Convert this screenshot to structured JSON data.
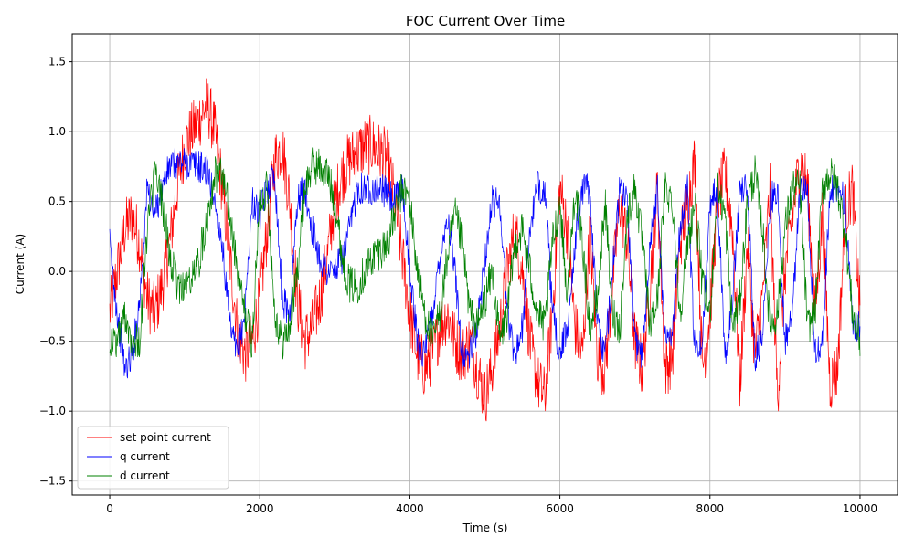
{
  "chart_data": {
    "type": "line",
    "title": "FOC Current Over Time",
    "xlabel": "Time (s)",
    "ylabel": "Current (A)",
    "xlim": [
      -500,
      10500
    ],
    "ylim": [
      -1.6,
      1.7
    ],
    "x_ticks": [
      0,
      2000,
      4000,
      6000,
      8000,
      10000
    ],
    "y_ticks": [
      -1.5,
      -1.0,
      -0.5,
      0.0,
      0.5,
      1.0,
      1.5
    ],
    "x_tick_labels": [
      "0",
      "2000",
      "4000",
      "6000",
      "8000",
      "10000"
    ],
    "y_tick_labels": [
      "−1.5",
      "−1.0",
      "−0.5",
      "0.0",
      "0.5",
      "1.0",
      "1.5"
    ],
    "grid": true,
    "legend_position": "lower-left",
    "x_range": [
      0,
      10000
    ],
    "series": [
      {
        "name": "set point current",
        "color": "#ff0000",
        "x": [
          0,
          100,
          200,
          300,
          400,
          500,
          600,
          700,
          800,
          900,
          1000,
          1100,
          1200,
          1300,
          1400,
          1500,
          1600,
          1700,
          1800,
          1900,
          2000,
          2100,
          2200,
          2300,
          2400,
          2500,
          2600,
          2700,
          2800,
          2900,
          3000,
          3100,
          3200,
          3300,
          3400,
          3500,
          3600,
          3700,
          3800,
          3900,
          4000,
          4100,
          4200,
          4300,
          4400,
          4500,
          4600,
          4700,
          4800,
          4900,
          5000,
          5100,
          5200,
          5300,
          5400,
          5500,
          5600,
          5700,
          5800,
          5900,
          6000,
          6100,
          6200,
          6300,
          6400,
          6500,
          6600,
          6700,
          6800,
          6900,
          7000,
          7100,
          7200,
          7300,
          7400,
          7500,
          7600,
          7700,
          7800,
          7900,
          8000,
          8100,
          8200,
          8300,
          8400,
          8500,
          8600,
          8700,
          8800,
          8900,
          9000,
          9100,
          9200,
          9300,
          9400,
          9500,
          9600,
          9700,
          9800,
          9900,
          10000
        ],
        "values": [
          -0.3,
          0.0,
          0.3,
          0.4,
          0.2,
          -0.2,
          -0.3,
          -0.1,
          0.2,
          0.6,
          0.9,
          1.0,
          1.1,
          1.2,
          1.0,
          0.6,
          0.1,
          -0.4,
          -0.6,
          -0.5,
          -0.2,
          0.3,
          0.8,
          0.9,
          0.5,
          -0.2,
          -0.5,
          -0.4,
          -0.2,
          0.1,
          0.5,
          0.7,
          0.8,
          0.85,
          0.9,
          0.9,
          0.85,
          0.8,
          0.5,
          0.1,
          -0.3,
          -0.6,
          -0.7,
          -0.6,
          -0.4,
          -0.3,
          -0.5,
          -0.6,
          -0.5,
          -0.7,
          -0.9,
          -0.7,
          -0.4,
          0.0,
          0.3,
          0.0,
          -0.5,
          -0.8,
          -0.9,
          -0.3,
          0.6,
          0.3,
          -0.4,
          -0.6,
          0.3,
          -0.6,
          -0.7,
          -0.1,
          0.5,
          0.2,
          -0.5,
          -0.7,
          -0.1,
          0.6,
          -0.7,
          -0.6,
          0.2,
          0.5,
          0.8,
          -0.7,
          -0.3,
          0.5,
          0.7,
          0.3,
          -0.8,
          0.2,
          -0.6,
          -0.2,
          0.6,
          -0.9,
          0.0,
          0.4,
          0.8,
          0.6,
          -0.3,
          0.4,
          -0.8,
          -0.7,
          0.4,
          0.6,
          -0.3
        ]
      },
      {
        "name": "q current",
        "color": "#0000ff",
        "x": [
          0,
          100,
          200,
          300,
          400,
          500,
          600,
          700,
          800,
          900,
          1000,
          1100,
          1200,
          1300,
          1400,
          1500,
          1600,
          1700,
          1800,
          1900,
          2000,
          2100,
          2200,
          2300,
          2400,
          2500,
          2600,
          2700,
          2800,
          2900,
          3000,
          3100,
          3200,
          3300,
          3400,
          3500,
          3600,
          3700,
          3800,
          3900,
          4000,
          4100,
          4200,
          4300,
          4400,
          4500,
          4600,
          4700,
          4800,
          4900,
          5000,
          5100,
          5200,
          5300,
          5400,
          5500,
          5600,
          5700,
          5800,
          5900,
          6000,
          6100,
          6200,
          6300,
          6400,
          6500,
          6600,
          6700,
          6800,
          6900,
          7000,
          7100,
          7200,
          7300,
          7400,
          7500,
          7600,
          7700,
          7800,
          7900,
          8000,
          8100,
          8200,
          8300,
          8400,
          8500,
          8600,
          8700,
          8800,
          8900,
          9000,
          9100,
          9200,
          9300,
          9400,
          9500,
          9600,
          9700,
          9800,
          9900,
          10000
        ],
        "values": [
          0.2,
          -0.3,
          -0.7,
          -0.6,
          -0.2,
          0.6,
          0.4,
          0.6,
          0.75,
          0.78,
          0.78,
          0.77,
          0.75,
          0.72,
          0.5,
          0.2,
          -0.4,
          -0.6,
          -0.3,
          0.5,
          0.4,
          0.6,
          0.7,
          -0.2,
          -0.3,
          0.5,
          0.6,
          0.3,
          0.1,
          0.0,
          0.0,
          0.1,
          0.3,
          0.6,
          0.6,
          0.6,
          0.6,
          0.55,
          0.5,
          0.6,
          0.0,
          -0.5,
          -0.6,
          -0.3,
          0.1,
          0.4,
          0.0,
          -0.6,
          -0.6,
          -0.4,
          0.1,
          0.5,
          0.5,
          -0.3,
          -0.6,
          -0.4,
          0.3,
          0.6,
          0.6,
          -0.3,
          -0.6,
          -0.4,
          0.2,
          0.6,
          0.6,
          -0.4,
          -0.6,
          0.0,
          0.6,
          0.5,
          -0.5,
          -0.6,
          0.2,
          0.6,
          -0.5,
          -0.4,
          0.3,
          0.6,
          -0.6,
          -0.5,
          0.5,
          0.6,
          -0.6,
          -0.2,
          0.6,
          0.6,
          -0.6,
          -0.5,
          0.5,
          0.6,
          -0.5,
          -0.3,
          0.6,
          0.6,
          -0.6,
          -0.5,
          0.6,
          0.6,
          0.5,
          -0.4,
          -0.4
        ]
      },
      {
        "name": "d current",
        "color": "#008000",
        "x": [
          0,
          100,
          200,
          300,
          400,
          500,
          600,
          700,
          800,
          900,
          1000,
          1100,
          1200,
          1300,
          1400,
          1500,
          1600,
          1700,
          1800,
          1900,
          2000,
          2100,
          2200,
          2300,
          2400,
          2500,
          2600,
          2700,
          2800,
          2900,
          3000,
          3100,
          3200,
          3300,
          3400,
          3500,
          3600,
          3700,
          3800,
          3900,
          4000,
          4100,
          4200,
          4300,
          4400,
          4500,
          4600,
          4700,
          4800,
          4900,
          5000,
          5100,
          5200,
          5300,
          5400,
          5500,
          5600,
          5700,
          5800,
          5900,
          6000,
          6100,
          6200,
          6300,
          6400,
          6500,
          6600,
          6700,
          6800,
          6900,
          7000,
          7100,
          7200,
          7300,
          7400,
          7500,
          7600,
          7700,
          7800,
          7900,
          8000,
          8100,
          8200,
          8300,
          8400,
          8500,
          8600,
          8700,
          8800,
          8900,
          9000,
          9100,
          9200,
          9300,
          9400,
          9500,
          9600,
          9700,
          9800,
          9900,
          10000
        ],
        "values": [
          -0.5,
          -0.5,
          -0.3,
          -0.5,
          -0.5,
          0.3,
          0.7,
          0.5,
          0.1,
          -0.1,
          -0.1,
          -0.05,
          0.1,
          0.4,
          0.7,
          0.7,
          0.4,
          0.0,
          -0.3,
          -0.5,
          0.5,
          0.6,
          -0.3,
          -0.5,
          -0.4,
          0.0,
          0.6,
          0.75,
          0.75,
          0.7,
          0.5,
          0.1,
          -0.1,
          -0.1,
          0.0,
          0.1,
          0.15,
          0.2,
          0.4,
          0.6,
          0.5,
          0.0,
          -0.3,
          -0.5,
          -0.3,
          0.1,
          0.4,
          0.2,
          -0.3,
          -0.4,
          -0.2,
          0.0,
          -0.5,
          -0.3,
          0.2,
          0.3,
          0.0,
          -0.3,
          -0.4,
          0.2,
          0.5,
          -0.2,
          0.6,
          0.2,
          -0.4,
          -0.2,
          0.5,
          -0.3,
          -0.4,
          0.4,
          0.6,
          0.2,
          -0.4,
          -0.2,
          0.6,
          0.5,
          -0.3,
          0.2,
          0.5,
          -0.1,
          -0.3,
          0.6,
          0.4,
          -0.4,
          -0.2,
          0.5,
          0.7,
          0.3,
          -0.4,
          -0.3,
          0.3,
          0.6,
          0.6,
          -0.4,
          -0.3,
          0.6,
          0.7,
          0.6,
          0.3,
          -0.3,
          -0.5
        ]
      }
    ]
  }
}
